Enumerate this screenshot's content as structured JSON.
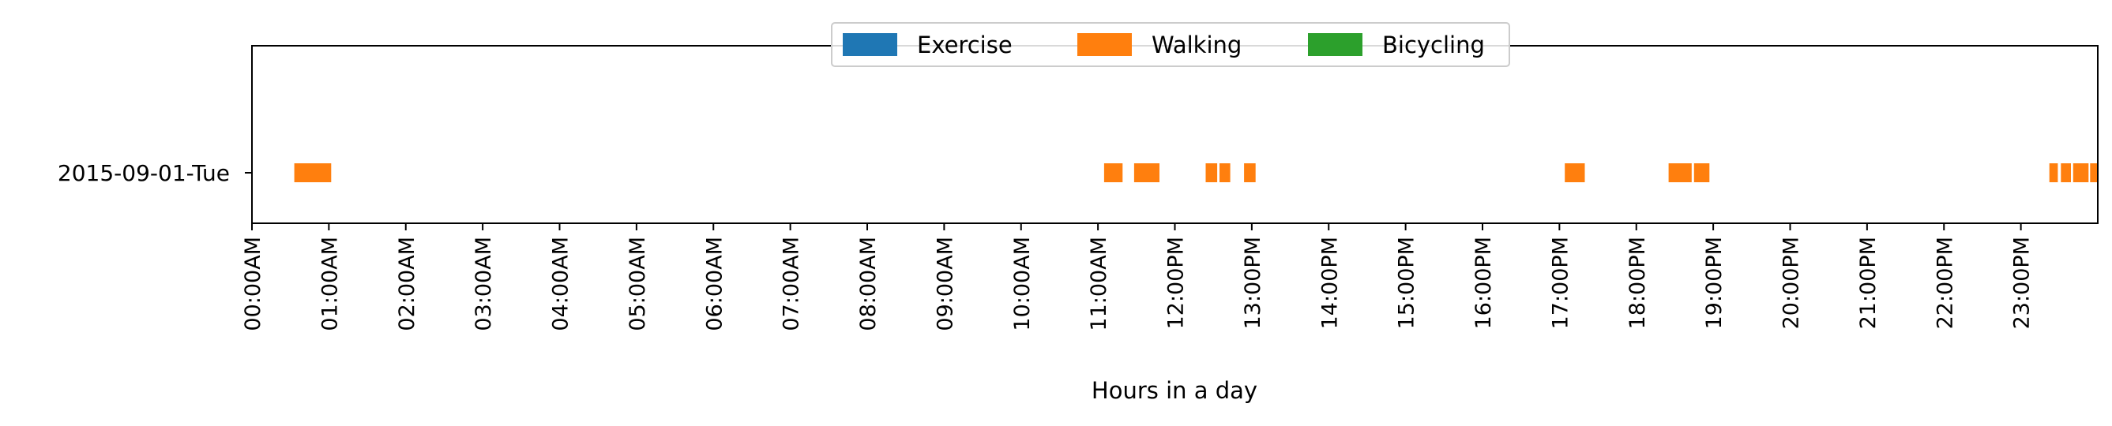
{
  "chart_data": {
    "type": "timeline",
    "xlabel": "Hours in a day",
    "xlim_hours": [
      0,
      24
    ],
    "tick_labels": [
      "00:00AM",
      "01:00AM",
      "02:00AM",
      "03:00AM",
      "04:00AM",
      "05:00AM",
      "06:00AM",
      "07:00AM",
      "08:00AM",
      "09:00AM",
      "10:00AM",
      "11:00AM",
      "12:00PM",
      "13:00PM",
      "14:00PM",
      "15:00PM",
      "16:00PM",
      "17:00PM",
      "18:00PM",
      "19:00PM",
      "20:00PM",
      "21:00PM",
      "22:00PM",
      "23:00PM"
    ],
    "categories": [
      "2015-09-01-Tue"
    ],
    "legend_position": "top-center",
    "grid": false,
    "legend": [
      {
        "name": "Exercise",
        "color": "#1f77b4"
      },
      {
        "name": "Walking",
        "color": "#ff7f0e"
      },
      {
        "name": "Bicycling",
        "color": "#2ca02c"
      }
    ],
    "series": [
      {
        "name": "Walking",
        "category": "2015-09-01-Tue",
        "segments_hours": [
          [
            0.55,
            1.03
          ],
          [
            11.08,
            11.32
          ],
          [
            11.47,
            11.8
          ],
          [
            12.4,
            12.55
          ],
          [
            12.58,
            12.72
          ],
          [
            12.9,
            13.05
          ],
          [
            17.07,
            17.33
          ],
          [
            18.42,
            18.72
          ],
          [
            18.75,
            18.95
          ],
          [
            23.37,
            23.48
          ],
          [
            23.52,
            23.65
          ],
          [
            23.68,
            23.88
          ],
          [
            23.9,
            24.0
          ]
        ]
      }
    ]
  }
}
